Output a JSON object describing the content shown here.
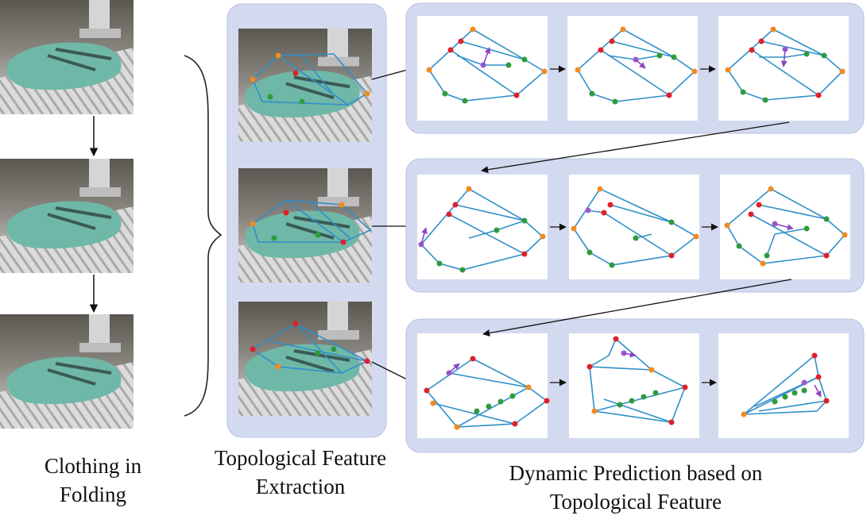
{
  "captions": {
    "left": [
      "Clothing in",
      "Folding"
    ],
    "middle": [
      "Topological Feature",
      "Extraction"
    ],
    "right": [
      "Dynamic Prediction based on",
      "Topological Feature"
    ]
  },
  "colors": {
    "panel_fill": "#d3daf0",
    "edge": "#2f8fc9",
    "node_red": "#e0202a",
    "node_orange": "#f28a1e",
    "node_green": "#2e9b3c",
    "node_purple": "#9b59d0",
    "cloth": "#6fb8a8",
    "table": "#c9c9c9"
  },
  "icons": [
    "robot-arm-photo",
    "cloth-photo",
    "arrow-right",
    "arrow-down",
    "curly-brace"
  ]
}
